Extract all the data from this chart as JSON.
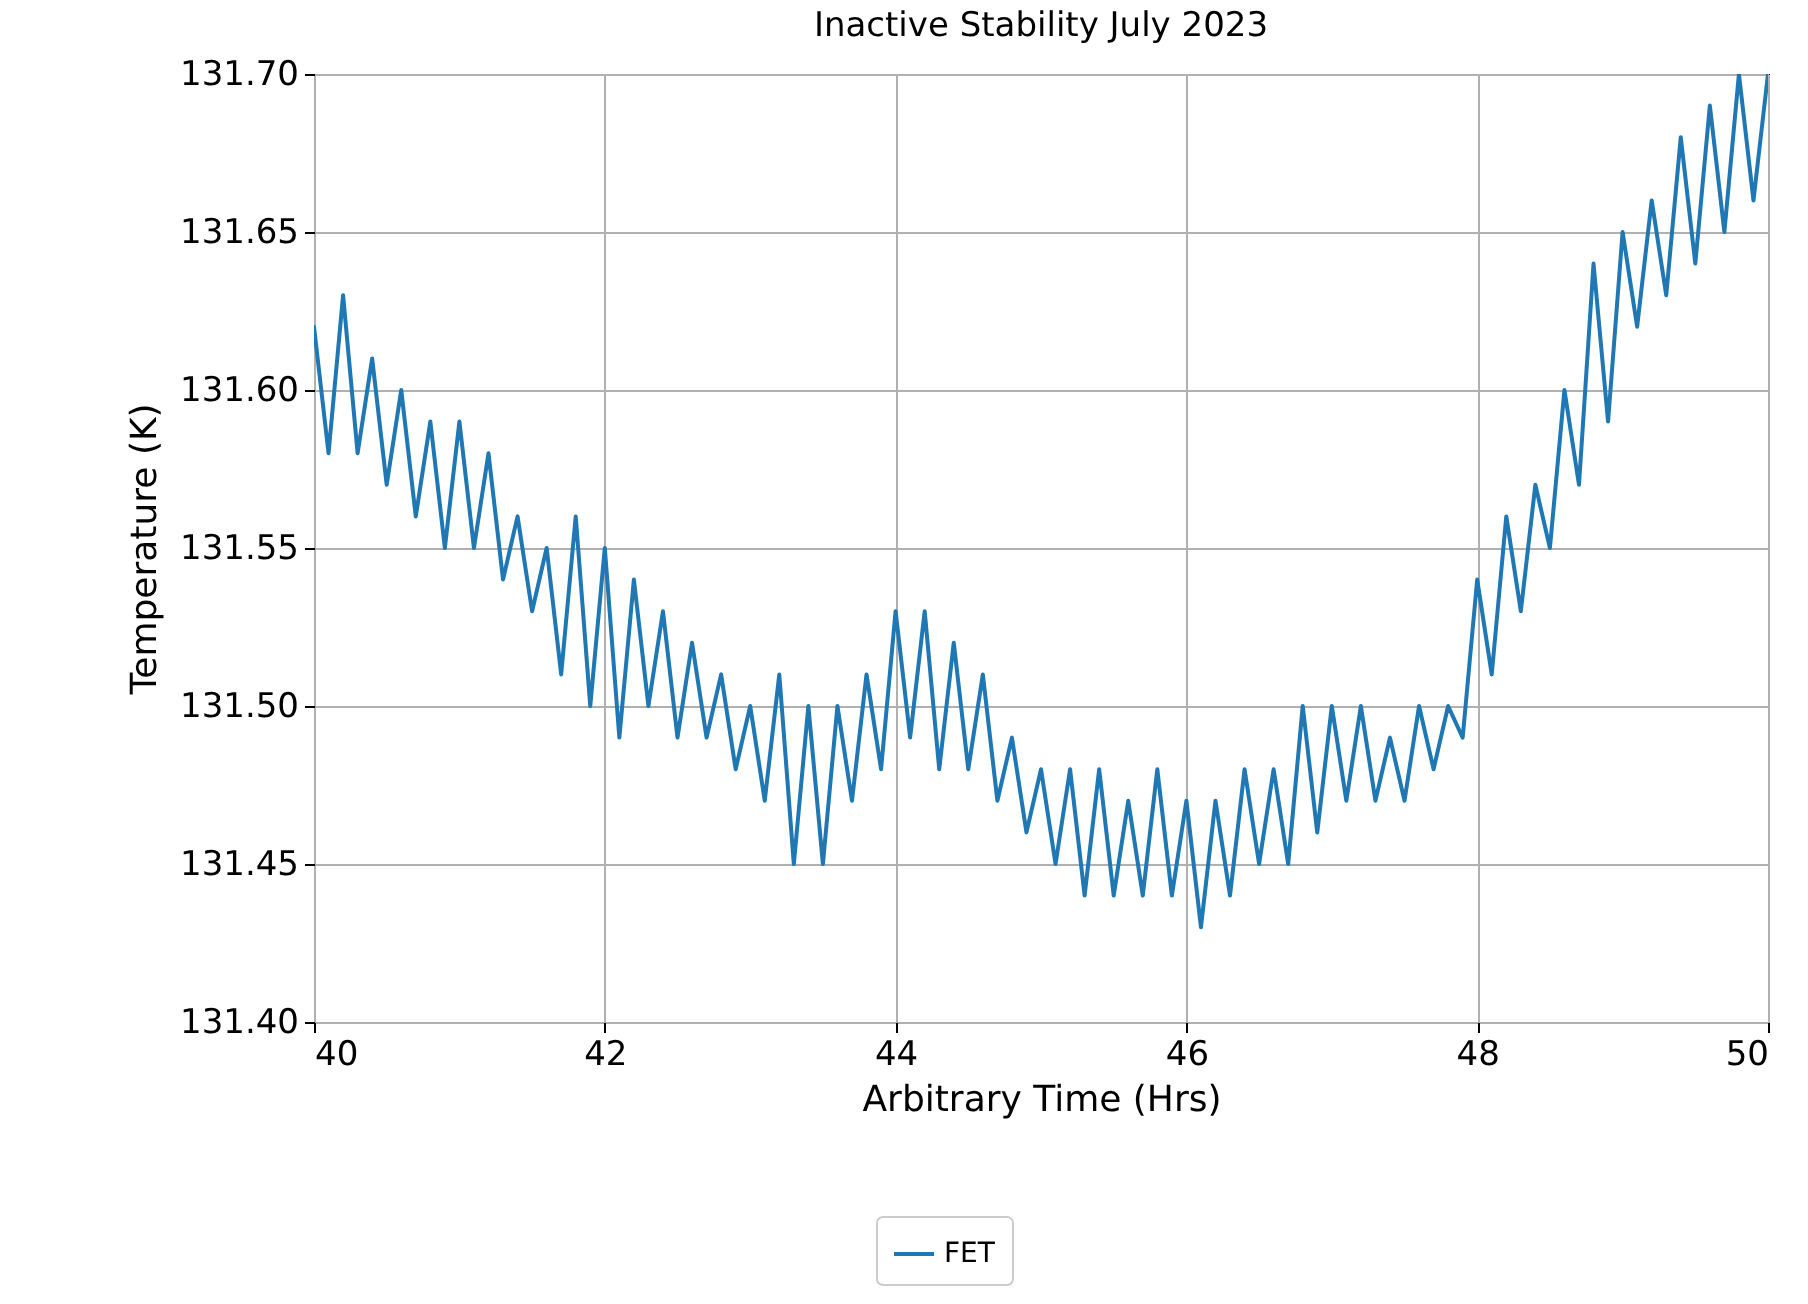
{
  "chart_data": {
    "type": "line",
    "title": "Inactive Stability July 2023",
    "xlabel": "Arbitrary Time (Hrs)",
    "ylabel": "Temperature (K)",
    "x": [
      40.0,
      40.1,
      40.2,
      40.3,
      40.4,
      40.5,
      40.6,
      40.7,
      40.8,
      40.9,
      41.0,
      41.1,
      41.2,
      41.3,
      41.4,
      41.5,
      41.6,
      41.7,
      41.8,
      41.9,
      42.0,
      42.1,
      42.2,
      42.3,
      42.4,
      42.5,
      42.6,
      42.7,
      42.8,
      42.9,
      43.0,
      43.1,
      43.2,
      43.3,
      43.4,
      43.5,
      43.6,
      43.7,
      43.8,
      43.9,
      44.0,
      44.1,
      44.2,
      44.3,
      44.4,
      44.5,
      44.6,
      44.7,
      44.8,
      44.9,
      45.0,
      45.1,
      45.2,
      45.3,
      45.4,
      45.5,
      45.6,
      45.7,
      45.8,
      45.9,
      46.0,
      46.1,
      46.2,
      46.3,
      46.4,
      46.5,
      46.6,
      46.7,
      46.8,
      46.9,
      47.0,
      47.1,
      47.2,
      47.3,
      47.4,
      47.5,
      47.6,
      47.7,
      47.8,
      47.9,
      48.0,
      48.1,
      48.2,
      48.3,
      48.4,
      48.5,
      48.6,
      48.7,
      48.8,
      48.9,
      49.0,
      49.1,
      49.2,
      49.3,
      49.4,
      49.5,
      49.6,
      49.7,
      49.8,
      49.9,
      50.0
    ],
    "series": [
      {
        "name": "FET",
        "color": "#1f77b4",
        "values": [
          131.62,
          131.58,
          131.63,
          131.58,
          131.61,
          131.57,
          131.6,
          131.56,
          131.59,
          131.55,
          131.59,
          131.55,
          131.58,
          131.54,
          131.56,
          131.53,
          131.55,
          131.51,
          131.56,
          131.5,
          131.55,
          131.49,
          131.54,
          131.5,
          131.53,
          131.49,
          131.52,
          131.49,
          131.51,
          131.48,
          131.5,
          131.47,
          131.51,
          131.45,
          131.5,
          131.45,
          131.5,
          131.47,
          131.51,
          131.48,
          131.53,
          131.49,
          131.53,
          131.48,
          131.52,
          131.48,
          131.51,
          131.47,
          131.49,
          131.46,
          131.48,
          131.45,
          131.48,
          131.44,
          131.48,
          131.44,
          131.47,
          131.44,
          131.48,
          131.44,
          131.47,
          131.43,
          131.47,
          131.44,
          131.48,
          131.45,
          131.48,
          131.45,
          131.5,
          131.46,
          131.5,
          131.47,
          131.5,
          131.47,
          131.49,
          131.47,
          131.5,
          131.48,
          131.5,
          131.49,
          131.54,
          131.51,
          131.56,
          131.53,
          131.57,
          131.55,
          131.6,
          131.57,
          131.64,
          131.59,
          131.65,
          131.62,
          131.66,
          131.63,
          131.68,
          131.64,
          131.69,
          131.65,
          131.7,
          131.66,
          131.7
        ]
      }
    ],
    "xlim": [
      40,
      50
    ],
    "xticks": [
      40,
      42,
      44,
      46,
      48,
      50
    ],
    "ylim": [
      131.4,
      131.7
    ],
    "yticks": [
      {
        "value": 131.4,
        "label": "131.40"
      },
      131.45,
      {
        "value": 131.5,
        "label": "131.50"
      },
      131.55,
      {
        "value": 131.6,
        "label": "131.60"
      },
      131.65,
      {
        "value": 131.7,
        "label": "131.70"
      }
    ],
    "grid": true,
    "legend": "bottom",
    "marker": "none",
    "line_style": "solid"
  }
}
